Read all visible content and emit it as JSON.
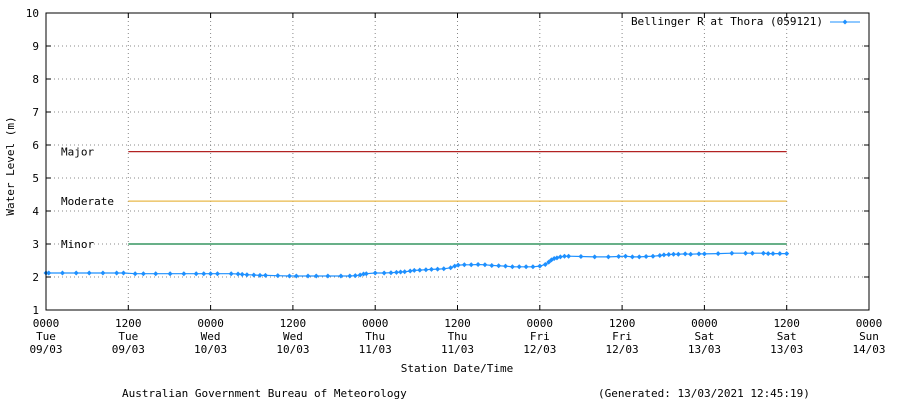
{
  "chart_data": {
    "type": "line",
    "title": "",
    "ylabel": "Water Level (m)",
    "xlabel": "Station Date/Time",
    "ylim": [
      1,
      10
    ],
    "yticks": [
      "1",
      "2",
      "3",
      "4",
      "5",
      "6",
      "7",
      "8",
      "9",
      "10"
    ],
    "xlim_hours": [
      0,
      120
    ],
    "xticks": [
      {
        "h": 0,
        "time": "0000",
        "day": "Tue",
        "date": "09/03"
      },
      {
        "h": 12,
        "time": "1200",
        "day": "Tue",
        "date": "09/03"
      },
      {
        "h": 24,
        "time": "0000",
        "day": "Wed",
        "date": "10/03"
      },
      {
        "h": 36,
        "time": "1200",
        "day": "Wed",
        "date": "10/03"
      },
      {
        "h": 48,
        "time": "0000",
        "day": "Thu",
        "date": "11/03"
      },
      {
        "h": 60,
        "time": "1200",
        "day": "Thu",
        "date": "11/03"
      },
      {
        "h": 72,
        "time": "0000",
        "day": "Fri",
        "date": "12/03"
      },
      {
        "h": 84,
        "time": "1200",
        "day": "Fri",
        "date": "12/03"
      },
      {
        "h": 96,
        "time": "0000",
        "day": "Sat",
        "date": "13/03"
      },
      {
        "h": 108,
        "time": "1200",
        "day": "Sat",
        "date": "13/03"
      },
      {
        "h": 120,
        "time": "0000",
        "day": "Sun",
        "date": "14/03"
      }
    ],
    "grid": true,
    "legend_position": "top-right",
    "series": [
      {
        "name": "Bellinger R at Thora (059121)",
        "color": "#1e90ff",
        "points": [
          [
            0.0,
            2.12
          ],
          [
            0.4,
            2.12
          ],
          [
            2.4,
            2.12
          ],
          [
            4.4,
            2.12
          ],
          [
            6.3,
            2.12
          ],
          [
            8.3,
            2.12
          ],
          [
            10.3,
            2.12
          ],
          [
            11.3,
            2.12
          ],
          [
            13.0,
            2.1
          ],
          [
            14.2,
            2.1
          ],
          [
            16.0,
            2.1
          ],
          [
            18.1,
            2.1
          ],
          [
            20.1,
            2.1
          ],
          [
            21.9,
            2.1
          ],
          [
            23.0,
            2.1
          ],
          [
            24.0,
            2.1
          ],
          [
            25.0,
            2.1
          ],
          [
            27.0,
            2.1
          ],
          [
            28.0,
            2.09
          ],
          [
            28.6,
            2.08
          ],
          [
            29.3,
            2.07
          ],
          [
            30.3,
            2.06
          ],
          [
            31.2,
            2.05
          ],
          [
            32.0,
            2.05
          ],
          [
            33.8,
            2.04
          ],
          [
            35.5,
            2.03
          ],
          [
            36.5,
            2.03
          ],
          [
            38.2,
            2.03
          ],
          [
            39.4,
            2.03
          ],
          [
            41.1,
            2.03
          ],
          [
            43.0,
            2.03
          ],
          [
            44.3,
            2.03
          ],
          [
            45.1,
            2.04
          ],
          [
            45.8,
            2.06
          ],
          [
            46.3,
            2.09
          ],
          [
            46.7,
            2.1
          ],
          [
            48.0,
            2.12
          ],
          [
            49.3,
            2.12
          ],
          [
            50.3,
            2.13
          ],
          [
            51.1,
            2.14
          ],
          [
            51.7,
            2.15
          ],
          [
            52.3,
            2.16
          ],
          [
            53.1,
            2.18
          ],
          [
            53.7,
            2.2
          ],
          [
            54.5,
            2.21
          ],
          [
            55.4,
            2.22
          ],
          [
            56.2,
            2.23
          ],
          [
            57.1,
            2.24
          ],
          [
            58.0,
            2.25
          ],
          [
            59.0,
            2.28
          ],
          [
            59.6,
            2.33
          ],
          [
            60.1,
            2.36
          ],
          [
            61.0,
            2.37
          ],
          [
            62.0,
            2.37
          ],
          [
            63.0,
            2.38
          ],
          [
            64.0,
            2.37
          ],
          [
            65.0,
            2.35
          ],
          [
            66.0,
            2.34
          ],
          [
            67.0,
            2.33
          ],
          [
            68.0,
            2.31
          ],
          [
            69.0,
            2.31
          ],
          [
            70.0,
            2.31
          ],
          [
            71.0,
            2.31
          ],
          [
            72.0,
            2.33
          ],
          [
            72.8,
            2.38
          ],
          [
            73.3,
            2.45
          ],
          [
            73.7,
            2.52
          ],
          [
            74.1,
            2.56
          ],
          [
            74.5,
            2.58
          ],
          [
            75.0,
            2.61
          ],
          [
            75.6,
            2.63
          ],
          [
            76.2,
            2.63
          ],
          [
            78.0,
            2.62
          ],
          [
            80.0,
            2.61
          ],
          [
            82.0,
            2.61
          ],
          [
            83.5,
            2.62
          ],
          [
            84.5,
            2.63
          ],
          [
            85.5,
            2.61
          ],
          [
            86.5,
            2.61
          ],
          [
            87.5,
            2.62
          ],
          [
            88.5,
            2.63
          ],
          [
            89.5,
            2.65
          ],
          [
            90.1,
            2.67
          ],
          [
            90.8,
            2.68
          ],
          [
            91.5,
            2.69
          ],
          [
            92.2,
            2.69
          ],
          [
            93.2,
            2.7
          ],
          [
            94.0,
            2.69
          ],
          [
            95.2,
            2.7
          ],
          [
            96.0,
            2.7
          ],
          [
            98.0,
            2.71
          ],
          [
            100.0,
            2.72
          ],
          [
            102.0,
            2.72
          ],
          [
            103.0,
            2.72
          ],
          [
            104.6,
            2.72
          ],
          [
            105.3,
            2.71
          ],
          [
            106.0,
            2.71
          ],
          [
            107.0,
            2.71
          ],
          [
            108.0,
            2.71
          ]
        ]
      }
    ],
    "thresholds": [
      {
        "label": "Major",
        "value": 5.8,
        "color": "#b22222",
        "x_from_h": 12,
        "x_to_h": 108
      },
      {
        "label": "Moderate",
        "value": 4.3,
        "color": "#e8b84a",
        "x_from_h": 12,
        "x_to_h": 108
      },
      {
        "label": "Minor",
        "value": 3.0,
        "color": "#0f8040",
        "x_from_h": 12,
        "x_to_h": 108
      }
    ]
  },
  "footer": {
    "source": "Australian Government Bureau of Meteorology",
    "generated": "(Generated: 13/03/2021 12:45:19)"
  }
}
